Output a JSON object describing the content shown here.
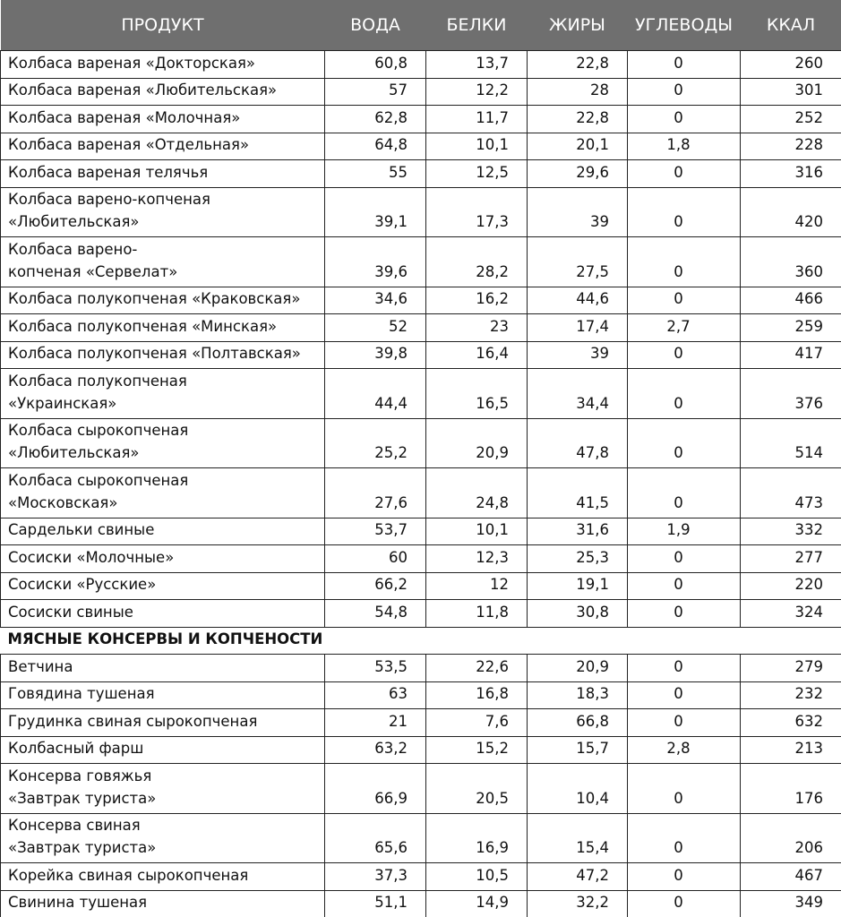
{
  "table": {
    "header": [
      "ПРОДУКТ",
      "ВОДА",
      "БЕЛКИ",
      "ЖИРЫ",
      "УГЛЕВОДЫ",
      "ККАЛ"
    ],
    "sections": [
      {
        "rows": [
          [
            "Колбаса вареная «Докторская»",
            "60,8",
            "13,7",
            "22,8",
            "0",
            "260"
          ],
          [
            "Колбаса вареная «Любительская»",
            "57",
            "12,2",
            "28",
            "0",
            "301"
          ],
          [
            "Колбаса вареная «Молочная»",
            "62,8",
            "11,7",
            "22,8",
            "0",
            "252"
          ],
          [
            "Колбаса вареная «Отдельная»",
            "64,8",
            "10,1",
            "20,1",
            "1,8",
            "228"
          ],
          [
            "Колбаса вареная телячья",
            "55",
            "12,5",
            "29,6",
            "0",
            "316"
          ],
          [
            "Колбаса варено-копченая\n«Любительская»",
            "39,1",
            "17,3",
            "39",
            "0",
            "420"
          ],
          [
            "Колбаса варено-\nкопченая «Сервелат»",
            "39,6",
            "28,2",
            "27,5",
            "0",
            "360"
          ],
          [
            "Колбаса полукопченая «Краковская»",
            "34,6",
            "16,2",
            "44,6",
            "0",
            "466"
          ],
          [
            "Колбаса полукопченая «Минская»",
            "52",
            "23",
            "17,4",
            "2,7",
            "259"
          ],
          [
            "Колбаса полукопченая «Полтавская»",
            "39,8",
            "16,4",
            "39",
            "0",
            "417"
          ],
          [
            "Колбаса полукопченая\n«Украинская»",
            "44,4",
            "16,5",
            "34,4",
            "0",
            "376"
          ],
          [
            "Колбаса сырокопченая\n«Любительская»",
            "25,2",
            "20,9",
            "47,8",
            "0",
            "514"
          ],
          [
            "Колбаса сырокопченая\n«Московская»",
            "27,6",
            "24,8",
            "41,5",
            "0",
            "473"
          ],
          [
            "Сардельки свиные",
            "53,7",
            "10,1",
            "31,6",
            "1,9",
            "332"
          ],
          [
            "Сосиски «Молочные»",
            "60",
            "12,3",
            "25,3",
            "0",
            "277"
          ],
          [
            "Сосиски «Русские»",
            "66,2",
            "12",
            "19,1",
            "0",
            "220"
          ],
          [
            "Сосиски свиные",
            "54,8",
            "11,8",
            "30,8",
            "0",
            "324"
          ]
        ]
      },
      {
        "title": "МЯСНЫЕ КОНСЕРВЫ И КОПЧЕНОСТИ",
        "rows": [
          [
            "Ветчина",
            "53,5",
            "22,6",
            "20,9",
            "0",
            "279"
          ],
          [
            "Говядина тушеная",
            "63",
            "16,8",
            "18,3",
            "0",
            "232"
          ],
          [
            "Грудинка свиная сырокопченая",
            "21",
            "7,6",
            "66,8",
            "0",
            "632"
          ],
          [
            "Колбасный фарш",
            "63,2",
            "15,2",
            "15,7",
            "2,8",
            "213"
          ],
          [
            "Консерва говяжья\n«Завтрак туриста»",
            "66,9",
            "20,5",
            "10,4",
            "0",
            "176"
          ],
          [
            "Консерва свиная\n«Завтрак туриста»",
            "65,6",
            "16,9",
            "15,4",
            "0",
            "206"
          ],
          [
            "Корейка свиная сырокопченая",
            "37,3",
            "10,5",
            "47,2",
            "0",
            "467"
          ],
          [
            "Свинина тушеная",
            "51,1",
            "14,9",
            "32,2",
            "0",
            "349"
          ]
        ]
      }
    ]
  }
}
